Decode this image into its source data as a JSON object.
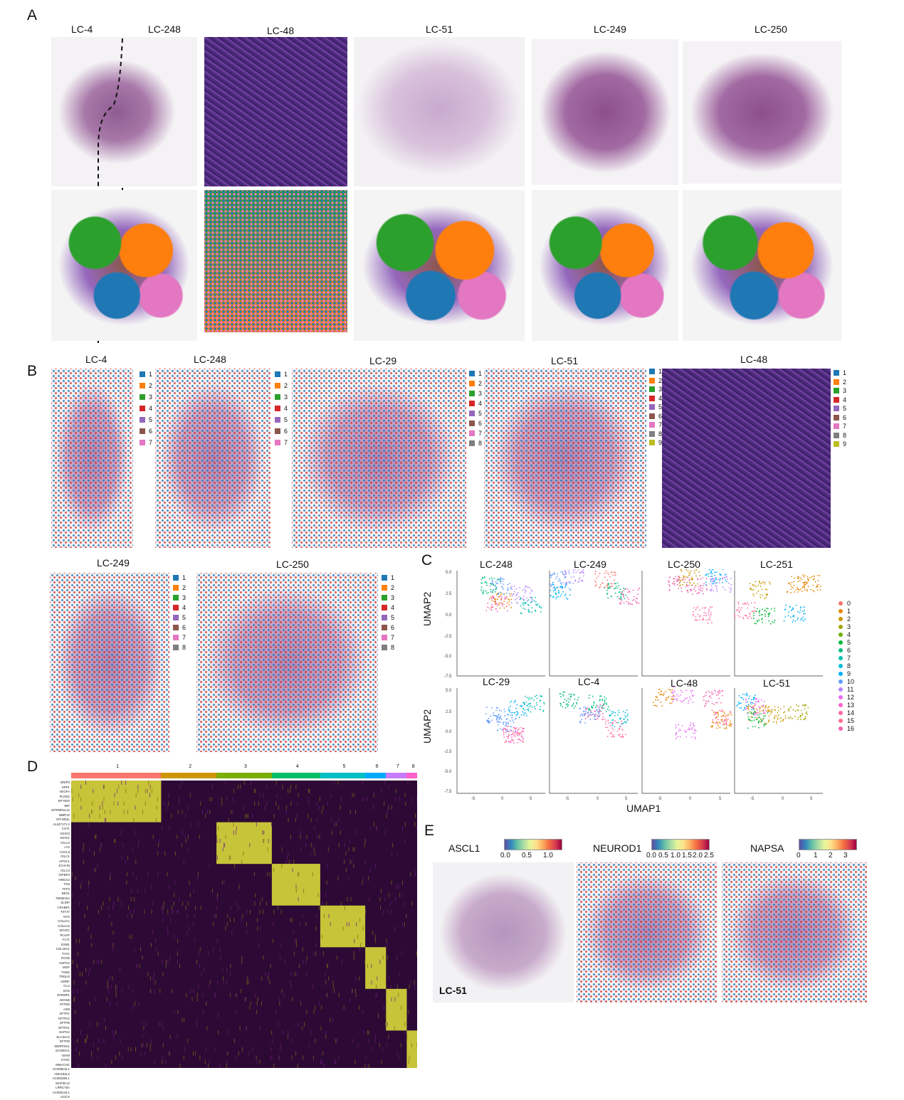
{
  "panel_labels": {
    "a": "A",
    "b": "B",
    "c": "C",
    "d": "D",
    "e": "E"
  },
  "panel_a": {
    "titles": [
      "LC-4",
      "LC-248",
      "LC-48",
      "LC-51",
      "LC-249",
      "LC-250"
    ]
  },
  "panel_b": {
    "titles": [
      "LC-4",
      "LC-248",
      "LC-29",
      "LC-51",
      "LC-48",
      "LC-249",
      "LC-250"
    ],
    "legends": [
      [
        "1",
        "2",
        "3",
        "4",
        "5",
        "6",
        "7"
      ],
      [
        "1",
        "2",
        "3",
        "4",
        "5",
        "6",
        "7"
      ],
      [
        "1",
        "2",
        "3",
        "4",
        "5",
        "6",
        "7",
        "8"
      ],
      [
        "1",
        "2",
        "3",
        "4",
        "5",
        "6",
        "7",
        "8",
        "9"
      ],
      [
        "1",
        "2",
        "3",
        "4",
        "5",
        "6",
        "7",
        "8",
        "9"
      ],
      [
        "1",
        "2",
        "3",
        "4",
        "5",
        "6",
        "7",
        "8"
      ],
      [
        "1",
        "2",
        "3",
        "4",
        "5",
        "6",
        "7",
        "8"
      ]
    ],
    "cluster_colors": [
      "#1f77b4",
      "#ff7f0e",
      "#2ca02c",
      "#d62728",
      "#9467bd",
      "#8c564b",
      "#e377c2",
      "#7f7f7f",
      "#bcbd22"
    ]
  },
  "panel_c": {
    "titles_top": [
      "LC-248",
      "LC-249",
      "LC-250",
      "LC-251"
    ],
    "titles_bottom": [
      "LC-29",
      "LC-4",
      "LC-48",
      "LC-51"
    ],
    "ylabel": "UMAP2",
    "xlabel": "UMAP1",
    "yticks": [
      "5.0",
      "2.5",
      "0.0",
      "-2.5",
      "-5.0",
      "-7.5"
    ],
    "xticks": [
      "-5",
      "0",
      "5"
    ],
    "legend": [
      "0",
      "1",
      "2",
      "3",
      "4",
      "5",
      "6",
      "7",
      "8",
      "9",
      "10",
      "11",
      "12",
      "13",
      "14",
      "15",
      "16"
    ],
    "legend_colors": [
      "#f8766d",
      "#e58700",
      "#c99800",
      "#a3a500",
      "#6bb100",
      "#00ba38",
      "#00bf7d",
      "#00c0af",
      "#00bcd8",
      "#00b0f6",
      "#619cff",
      "#b983ff",
      "#e76bf3",
      "#fd61d1",
      "#ff67a4",
      "#ff6c91",
      "#f066b0"
    ]
  },
  "chart_data": {
    "type": "heatmap",
    "title": "",
    "column_groups": [
      "1",
      "2",
      "3",
      "4",
      "5",
      "6",
      "7",
      "8"
    ],
    "column_group_colors": [
      "#f8766d",
      "#cd9600",
      "#7cae00",
      "#00be67",
      "#00bfc4",
      "#00a9ff",
      "#c77cff",
      "#ff61cc"
    ],
    "genes": [
      "BNIP3",
      "SPP1",
      "VEGFA",
      "PLOD2",
      "MT-ND3",
      "MIF",
      "MTRNR2L12",
      "MMP12",
      "MT-ND4L",
      "AL627171.2",
      "CST1",
      "IGHG3",
      "IGHG1",
      "IGLC2",
      "LY2",
      "CXCL9",
      "IGLC1",
      "APOC1",
      "JCHAIN",
      "IGLC3",
      "IGFBP2",
      "HMGA2",
      "TXN",
      "TFF3",
      "BEX1",
      "TMSB15A",
      "SLIRP",
      "CRABP1",
      "TST37",
      "NTS",
      "COL4A1",
      "COL4A2",
      "SPARC",
      "PLVAP",
      "FLT1",
      "ESM1",
      "COL18A1",
      "THY1",
      "RGS5",
      "HSPG2",
      "MGP",
      "TGM2",
      "TRDLR",
      "ADIRF",
      "CLU",
      "SGN",
      "EFEMP1",
      "ADH1B",
      "IFITM3",
      "A2M",
      "SFTPC",
      "SFTPA2",
      "SFTPB",
      "SFTPA1",
      "NAPSA",
      "SLC34A2",
      "SFTPD",
      "SERPINA1",
      "SCGB3A1",
      "IGHM",
      "SYNC",
      "MMACHC",
      "AC008544.1",
      "ADH1B2L2",
      "AC093355.1",
      "MAP3K12",
      "LRRC75A",
      "AC008133.1",
      "GGCX"
    ],
    "expression_blocks": [
      {
        "group": "1",
        "genes_from": "BNIP3",
        "genes_to": "AL627171.2",
        "level": "high"
      },
      {
        "group": "3",
        "genes_from": "CST1",
        "genes_to": "IGLC3",
        "level": "high"
      },
      {
        "group": "4",
        "genes_from": "IGFBP2",
        "genes_to": "NTS",
        "level": "high"
      },
      {
        "group": "5",
        "genes_from": "COL4A1",
        "genes_to": "HSPG2",
        "level": "high"
      },
      {
        "group": "6",
        "genes_from": "MGP",
        "genes_to": "A2M",
        "level": "high"
      },
      {
        "group": "7",
        "genes_from": "SFTPC",
        "genes_to": "IGHM",
        "level": "high"
      },
      {
        "group": "8",
        "genes_from": "SYNC",
        "genes_to": "GGCX",
        "level": "high"
      }
    ]
  },
  "panel_e": {
    "genes": [
      "ASCL1",
      "NEUROD1",
      "NAPSA"
    ],
    "scales": [
      [
        "0.0",
        "0.5",
        "1.0"
      ],
      [
        "0.0",
        "0.5",
        "1.0",
        "1.5",
        "2.0",
        "2.5"
      ],
      [
        "0",
        "1",
        "2",
        "3"
      ]
    ],
    "sample": "LC-51"
  }
}
